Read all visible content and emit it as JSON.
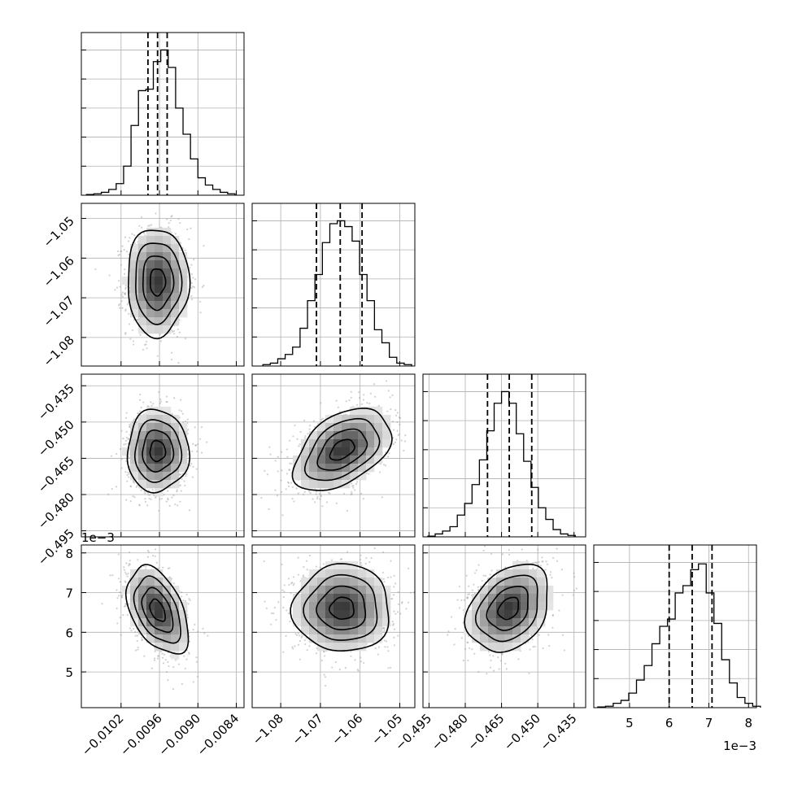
{
  "chart_data": {
    "type": "corner",
    "parameters": [
      {
        "ticks": [
          -0.0102,
          -0.0096,
          -0.009,
          -0.0084
        ],
        "tick_labels": [
          "−0.0102",
          "−0.0096",
          "−0.0090",
          "−0.0084"
        ],
        "range": [
          -0.01082,
          -0.00828
        ],
        "quantiles": [
          -0.00978,
          -0.00963,
          -0.00948
        ]
      },
      {
        "ticks": [
          -1.08,
          -1.07,
          -1.06,
          -1.05
        ],
        "tick_labels": [
          "−1.08",
          "−1.07",
          "−1.06",
          "−1.05"
        ],
        "range": [
          -1.0872,
          -1.0462
        ],
        "quantiles": [
          -1.071,
          -1.065,
          -1.0595
        ]
      },
      {
        "ticks": [
          -0.495,
          -0.48,
          -0.465,
          -0.45,
          -0.435
        ],
        "tick_labels": [
          "−0.495",
          "−0.480",
          "−0.465",
          "−0.450",
          "−0.435"
        ],
        "range": [
          -0.4975,
          -0.4302
        ],
        "quantiles": [
          -0.4708,
          -0.4618,
          -0.4525
        ]
      },
      {
        "ticks": [
          5,
          6,
          7,
          8
        ],
        "tick_labels": [
          "5",
          "6",
          "7",
          "8"
        ],
        "range": [
          4.1,
          8.2
        ],
        "quantiles": [
          6.0,
          6.58,
          7.08
        ],
        "offset_text": "1e−3"
      }
    ],
    "histograms": [
      {
        "counts": [
          0.005,
          0.01,
          0.02,
          0.04,
          0.08,
          0.2,
          0.48,
          0.72,
          0.73,
          0.92,
          1.0,
          0.88,
          0.6,
          0.42,
          0.25,
          0.12,
          0.07,
          0.04,
          0.02,
          0.01
        ],
        "range": [
          -0.01074,
          -0.00842
        ]
      },
      {
        "counts": [
          0.01,
          0.02,
          0.05,
          0.08,
          0.13,
          0.26,
          0.45,
          0.63,
          0.85,
          0.98,
          1.0,
          0.96,
          0.86,
          0.63,
          0.45,
          0.25,
          0.16,
          0.06,
          0.02,
          0.01
        ],
        "range": [
          -1.0845,
          -1.047
        ]
      },
      {
        "counts": [
          0.005,
          0.02,
          0.04,
          0.07,
          0.15,
          0.23,
          0.36,
          0.53,
          0.73,
          0.92,
          1.0,
          0.92,
          0.71,
          0.52,
          0.34,
          0.2,
          0.12,
          0.05,
          0.02,
          0.01
        ],
        "range": [
          -0.4955,
          -0.4345
        ]
      },
      {
        "counts": [
          0.005,
          0.01,
          0.03,
          0.05,
          0.1,
          0.19,
          0.29,
          0.44,
          0.56,
          0.61,
          0.79,
          0.84,
          0.95,
          0.99,
          0.79,
          0.58,
          0.33,
          0.17,
          0.07,
          0.03,
          0.01
        ],
        "range": [
          4.2,
          8.3
        ]
      }
    ],
    "hist_height": [
      0,
      1.12
    ],
    "pairs": [
      {
        "x": 0,
        "y": 1,
        "mean": [
          -0.00963,
          -1.066
        ],
        "std": [
          0.00024,
          0.0068
        ],
        "corr": 0.0
      },
      {
        "x": 0,
        "y": 2,
        "mean": [
          -0.00963,
          -0.462
        ],
        "std": [
          0.00024,
          0.0085
        ],
        "corr": 0.0
      },
      {
        "x": 1,
        "y": 2,
        "mean": [
          -1.0645,
          -0.4615
        ],
        "std": [
          0.0061,
          0.0085
        ],
        "corr": 0.45
      },
      {
        "x": 0,
        "y": 3,
        "mean": [
          -0.00963,
          6.55
        ],
        "std": [
          0.00024,
          0.55
        ],
        "corr": -0.45
      },
      {
        "x": 1,
        "y": 3,
        "mean": [
          -1.0645,
          6.6
        ],
        "std": [
          0.0061,
          0.55
        ],
        "corr": 0.0
      },
      {
        "x": 2,
        "y": 3,
        "mean": [
          -0.462,
          6.6
        ],
        "std": [
          0.0085,
          0.55
        ],
        "corr": 0.3
      }
    ],
    "contour_levels_sigma": [
      0.5,
      1.0,
      1.5,
      2.0
    ],
    "grid": true
  }
}
